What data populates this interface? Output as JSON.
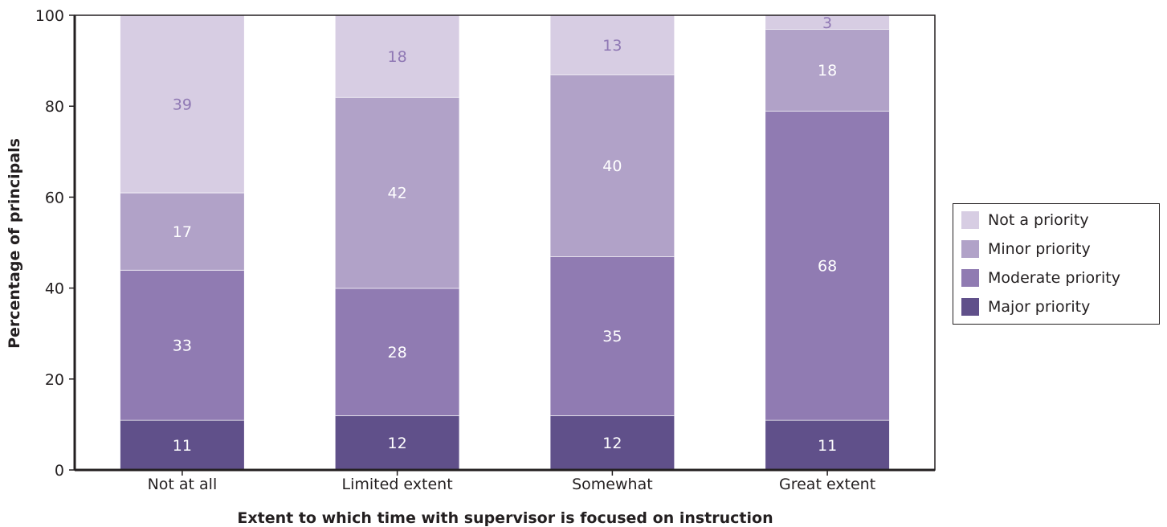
{
  "chart_data": {
    "type": "bar",
    "stacked": true,
    "xlabel": "Extent to which time with supervisor is focused on instruction",
    "ylabel": "Percentage of principals",
    "ylim": [
      0,
      100
    ],
    "yticks": [
      0,
      20,
      40,
      60,
      80,
      100
    ],
    "categories": [
      "Not at all",
      "Limited extent",
      "Somewhat",
      "Great extent"
    ],
    "series": [
      {
        "name": "Major priority",
        "color": "#60508a",
        "label_color": "#ffffff",
        "values": [
          11,
          12,
          12,
          11
        ]
      },
      {
        "name": "Moderate priority",
        "color": "#907bb2",
        "label_color": "#ffffff",
        "values": [
          33,
          28,
          35,
          68
        ]
      },
      {
        "name": "Minor priority",
        "color": "#b1a2c8",
        "label_color": "#ffffff",
        "values": [
          17,
          42,
          40,
          18
        ]
      },
      {
        "name": "Not a priority",
        "color": "#d7cde3",
        "label_color": "#8f78b4",
        "values": [
          39,
          18,
          13,
          3
        ]
      }
    ],
    "legend": {
      "position": "right",
      "order": [
        "Not a priority",
        "Minor priority",
        "Moderate priority",
        "Major priority"
      ]
    },
    "grid": false
  }
}
